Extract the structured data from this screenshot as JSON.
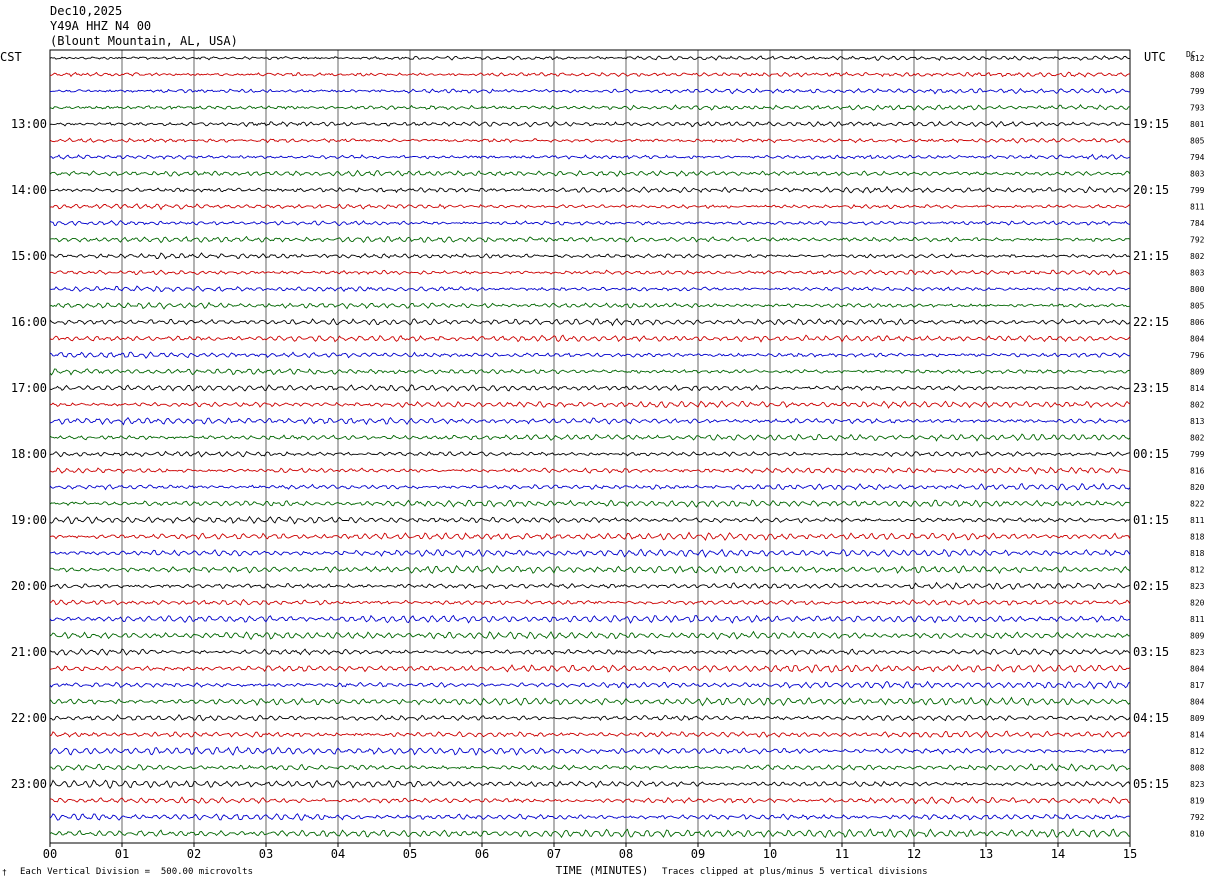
{
  "header": {
    "date": "Dec10,2025",
    "station": "Y49A HHZ N4 00",
    "location": "(Blount Mountain, AL, USA)"
  },
  "left_tz": "CST",
  "right_tz": "UTC",
  "dc_label": "DC",
  "footer": {
    "scale": "Each Vertical Division =  500.00 microvolts",
    "clip": "Traces clipped at plus/minus 5 vertical divisions",
    "corner_mark": "†"
  },
  "chart_data": {
    "type": "line",
    "title": "",
    "xlabel": "TIME (MINUTES)",
    "x_ticks": [
      "00",
      "01",
      "02",
      "03",
      "04",
      "05",
      "06",
      "07",
      "08",
      "09",
      "10",
      "11",
      "12",
      "13",
      "14",
      "15"
    ],
    "xlim": [
      0,
      15
    ],
    "grid": true,
    "trace_colors": [
      "#000000",
      "#cc0000",
      "#0000cc",
      "#006600"
    ],
    "left_hour_labels": [
      "13:00",
      "14:00",
      "15:00",
      "16:00",
      "17:00",
      "18:00",
      "19:00",
      "20:00",
      "21:00",
      "22:00",
      "23:00"
    ],
    "right_hour_labels": [
      "19:15",
      "20:15",
      "21:15",
      "22:15",
      "23:15",
      "00:15",
      "01:15",
      "02:15",
      "03:15",
      "04:15",
      "05:15"
    ],
    "dc_values": [
      812,
      808,
      799,
      793,
      801,
      805,
      794,
      803,
      799,
      811,
      784,
      792,
      802,
      803,
      800,
      805,
      806,
      804,
      796,
      809,
      814,
      802,
      813,
      802,
      799,
      816,
      820,
      822,
      811,
      818,
      818,
      812,
      823,
      820,
      811,
      809,
      823,
      804,
      817,
      804,
      809,
      814,
      812,
      808,
      823,
      819,
      792,
      810
    ]
  }
}
